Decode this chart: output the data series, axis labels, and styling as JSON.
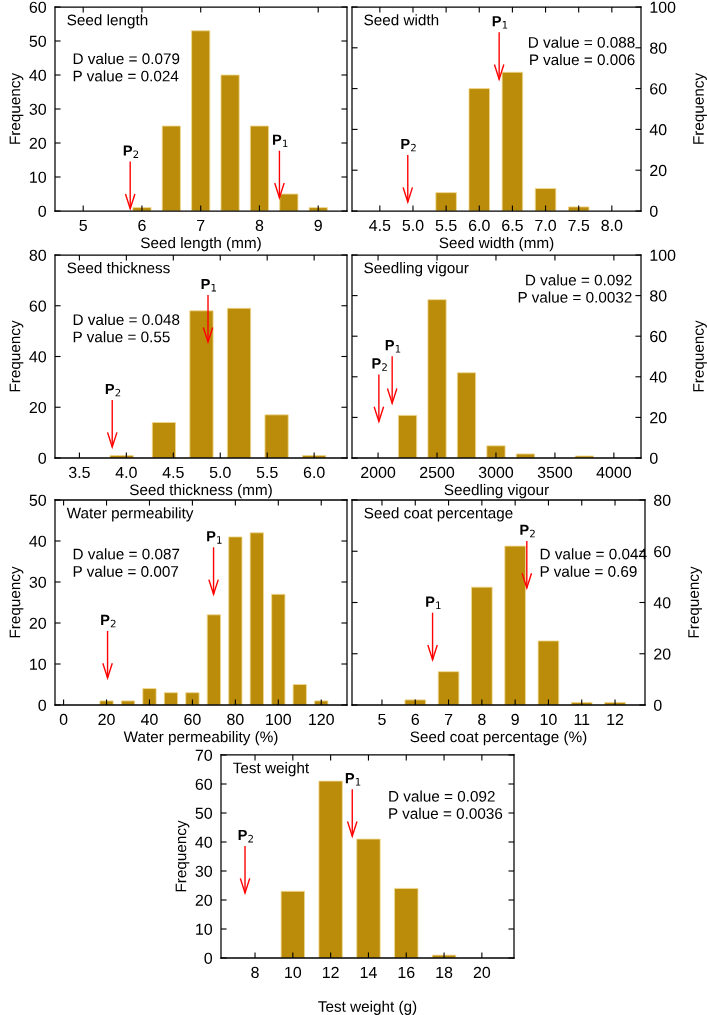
{
  "chart_data": [
    {
      "type": "bar",
      "title": "Seed length",
      "xlabel": "Seed length (mm)",
      "ylabel": "Frequency",
      "x": [
        6.0,
        6.5,
        7.0,
        7.5,
        8.0,
        8.5,
        9.0
      ],
      "values": [
        1,
        25,
        53,
        40,
        25,
        5,
        1
      ],
      "color": "#bb8c0a",
      "xlim": [
        4.52,
        9.49
      ],
      "xticks": [
        5,
        6,
        7,
        8,
        9
      ],
      "ylim": [
        0,
        60
      ],
      "yticks": [
        0,
        10,
        20,
        30,
        40,
        50,
        60
      ],
      "annotations": [
        "D value = 0.079",
        "P value = 0.024",
        {
          "text": "P$_{2}$",
          "x": 5.8,
          "y": 0.7
        },
        {
          "text": "P$_{1}$",
          "x": 8.34,
          "y": 3.9
        }
      ]
    },
    {
      "type": "bar",
      "title": "Seed width",
      "xlabel": "Seed width (mm)",
      "ylabel": "Frequency",
      "x": [
        5.5,
        6.0,
        6.5,
        7.0,
        7.5
      ],
      "values": [
        9,
        60,
        68,
        11,
        2
      ],
      "color": "#bb8c0a",
      "xlim": [
        4.08,
        8.44
      ],
      "xticks": [
        4.5,
        {
          "value": 5,
          "label": "5.0"
        },
        5.5,
        {
          "value": 6,
          "label": "6.0"
        },
        6.5,
        {
          "value": 7,
          "label": "7.0"
        },
        7.5,
        {
          "value": 8,
          "label": "8.0"
        }
      ],
      "ylim": [
        0,
        100
      ],
      "yticks": [
        0,
        20,
        40,
        60,
        80,
        100
      ],
      "annotations": [
        "D value = 0.088",
        "P value = 0.006",
        "P$_{2}$",
        {
          "text": "P$_{1}$",
          "x": 6.3,
          "y": 64.6
        }
      ]
    },
    {
      "type": "bar",
      "title": "Seed thickness",
      "xlabel": "Seed thickness (mm)",
      "ylabel": "Frequency",
      "x": [
        3.95,
        4.4,
        4.8,
        5.2,
        5.6,
        6.0
      ],
      "values": [
        1,
        14,
        58,
        59,
        17,
        1
      ],
      "color": "#bb8c0a",
      "xlim": [
        3.24,
        6.35
      ],
      "xticks": [
        3.5,
        {
          "value": 4,
          "label": "4.0"
        },
        4.5,
        {
          "value": 5,
          "label": "5.0"
        },
        5.5,
        {
          "value": 6,
          "label": "6.0"
        }
      ],
      "ylim": [
        0,
        80
      ],
      "yticks": [
        0,
        20,
        40,
        60,
        80
      ],
      "annotations": [
        "D value = 0.048",
        "P value = 0.55",
        "P$_{2}$",
        "P$_{1}$"
      ]
    },
    {
      "type": "bar",
      "title": "Seedling vigour",
      "xlabel": "Seedling vigour",
      "ylabel": "Frequency",
      "x": [
        2250,
        2500,
        2750,
        3000,
        3250,
        3750
      ],
      "values": [
        21,
        78,
        42,
        6,
        2,
        1
      ],
      "color": "#bb8c0a",
      "xlim": [
        1779,
        4230
      ],
      "xticks": [
        2000,
        2500,
        3000,
        3500,
        4000
      ],
      "ylim": [
        0,
        100
      ],
      "yticks": [
        0,
        20,
        40,
        60,
        80,
        100
      ],
      "annotations": [
        "D value = 0.092",
        "P value = 0.0032",
        "P$_{2}$",
        "P$_{1}$"
      ]
    },
    {
      "type": "bar",
      "title": "Water permeability",
      "xlabel": "Water permeability (%)",
      "ylabel": "Frequency",
      "x": [
        20,
        30,
        40,
        50,
        60,
        70,
        80,
        90,
        100,
        110,
        120
      ],
      "values": [
        1,
        1,
        4,
        3,
        3,
        22,
        41,
        42,
        27,
        5,
        1
      ],
      "color": "#bb8c0a",
      "xlim": [
        -4,
        132
      ],
      "xticks": [
        0,
        20,
        40,
        60,
        80,
        100,
        120
      ],
      "ylim": [
        0,
        50
      ],
      "yticks": [
        0,
        10,
        20,
        30,
        40,
        50
      ],
      "annotations": [
        "D value = 0.087",
        "P value = 0.007",
        "P$_{2}$",
        "P$_{1}$"
      ]
    },
    {
      "type": "bar",
      "title": "Seed coat percentage",
      "xlabel": "Seed coat percentage (%)",
      "ylabel": "Frequency",
      "x": [
        6,
        7,
        8,
        9,
        10,
        11,
        12
      ],
      "values": [
        2,
        13,
        46,
        62,
        25,
        1,
        1
      ],
      "color": "#bb8c0a",
      "xlim": [
        4.1,
        12.9
      ],
      "xticks": [
        5,
        6,
        7,
        8,
        9,
        10,
        11,
        12
      ],
      "ylim": [
        0,
        80
      ],
      "yticks": [
        0,
        20,
        40,
        60,
        80
      ],
      "annotations": [
        "D value = 0.044",
        "P value = 0.69",
        "P$_{1}$",
        {
          "text": "P$_{2}$",
          "x": 9.35,
          "y": 45.7
        }
      ]
    },
    {
      "type": "bar",
      "title": "Test weight",
      "xlabel": "Test weight (g)",
      "ylabel": "Frequency",
      "x": [
        10,
        12,
        14,
        16,
        18
      ],
      "values": [
        23,
        61,
        41,
        24,
        1
      ],
      "color": "#bb8c0a",
      "xlim": [
        6.2,
        21.7
      ],
      "xticks": [
        8,
        10,
        12,
        14,
        16,
        18,
        20
      ],
      "ylim": [
        0,
        70
      ],
      "yticks": [
        0,
        10,
        20,
        30,
        40,
        50,
        60,
        70
      ],
      "annotations": [
        "D value = 0.092",
        "P value = 0.0036",
        "P$_{2}$",
        "P$_{1}$"
      ]
    }
  ]
}
